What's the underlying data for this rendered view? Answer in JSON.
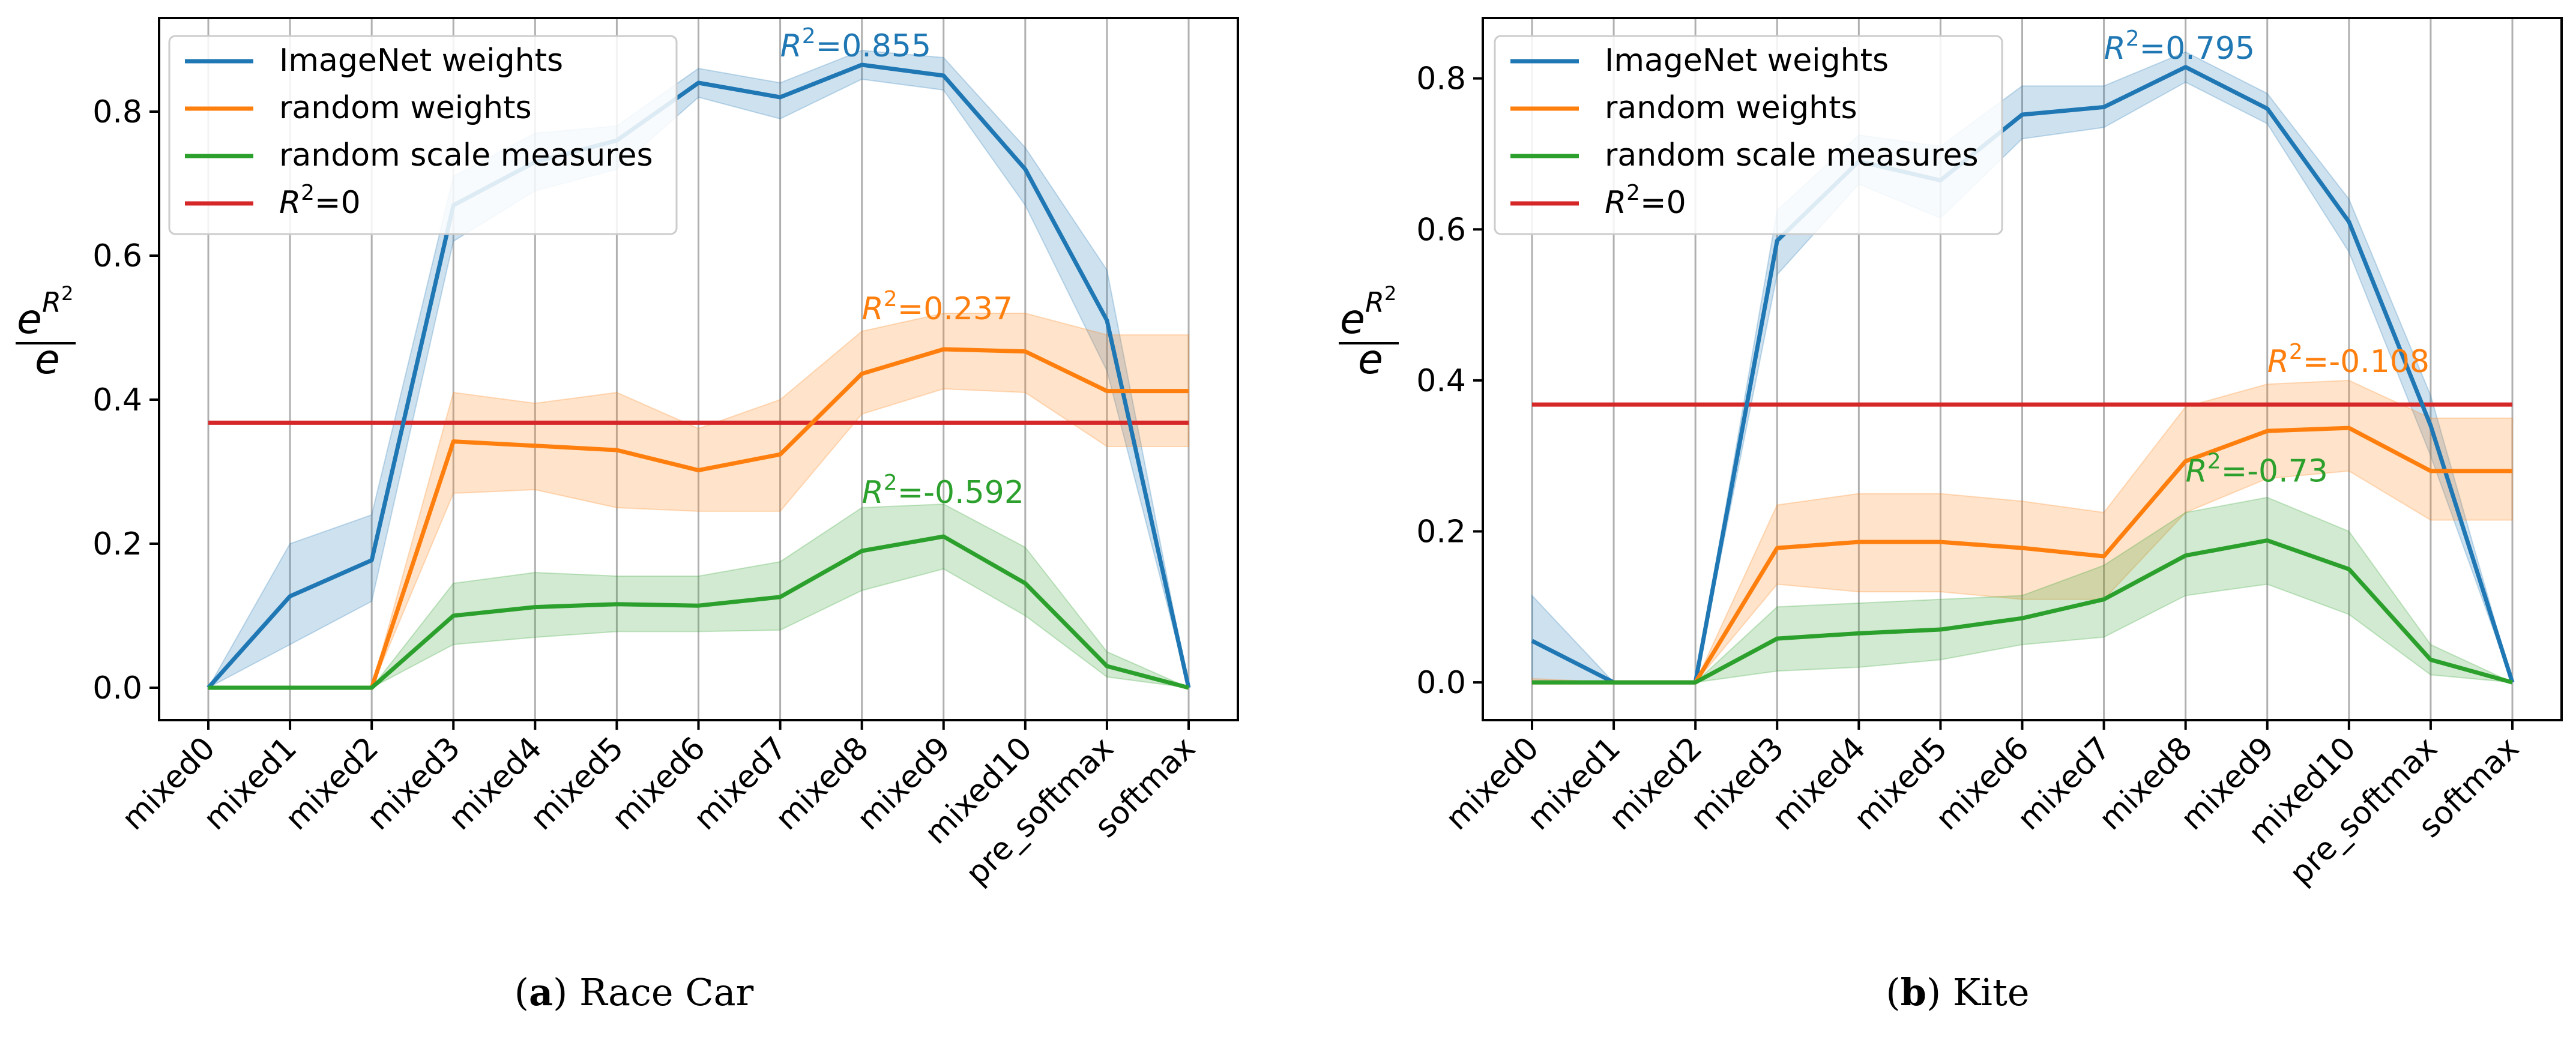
{
  "figure": {
    "panels": [
      {
        "caption_letter": "a",
        "caption_text": "Race Car",
        "r2_labels": {
          "imagenet": "0.855",
          "random_weights": "0.237",
          "random_scale": "-0.592"
        }
      },
      {
        "caption_letter": "b",
        "caption_text": "Kite",
        "r2_labels": {
          "imagenet": "0.795",
          "random_weights": "-0.108",
          "random_scale": "-0.73"
        }
      }
    ]
  },
  "colors": {
    "imagenet": "#1f77b4",
    "random_weights": "#ff7f0e",
    "random_scale": "#2ca02c",
    "baseline": "#d62728",
    "grid": "#b0b0b0"
  },
  "chart_data": [
    {
      "type": "line",
      "title": "",
      "xlabel": "",
      "ylabel": "e^{R^2}/e",
      "categories": [
        "mixed0",
        "mixed1",
        "mixed2",
        "mixed3",
        "mixed4",
        "mixed5",
        "mixed6",
        "mixed7",
        "mixed8",
        "mixed9",
        "mixed10",
        "pre_softmax",
        "softmax"
      ],
      "ylim": [
        -0.045,
        0.93
      ],
      "yticks": [
        0.0,
        0.2,
        0.4,
        0.6,
        0.8
      ],
      "ytick_labels": [
        "0.0",
        "0.2",
        "0.4",
        "0.6",
        "0.8"
      ],
      "grid": "vertical",
      "legend": {
        "placement": "top-left",
        "entries": [
          {
            "key": "imagenet",
            "label": "ImageNet weights"
          },
          {
            "key": "random_weights",
            "label": "random weights"
          },
          {
            "key": "random_scale",
            "label": "random scale measures"
          },
          {
            "key": "baseline",
            "label": "=0"
          }
        ]
      },
      "baseline": 0.368,
      "series": [
        {
          "key": "imagenet",
          "name": "ImageNet weights",
          "values": [
            0.0,
            0.127,
            0.177,
            0.67,
            0.73,
            0.76,
            0.84,
            0.82,
            0.865,
            0.85,
            0.72,
            0.51,
            0.0
          ],
          "lower": [
            0.0,
            0.06,
            0.12,
            0.62,
            0.69,
            0.72,
            0.82,
            0.79,
            0.845,
            0.83,
            0.67,
            0.44,
            0.0
          ],
          "upper": [
            0.0,
            0.2,
            0.24,
            0.71,
            0.77,
            0.78,
            0.86,
            0.84,
            0.885,
            0.875,
            0.75,
            0.58,
            0.0
          ]
        },
        {
          "key": "random_weights",
          "name": "random weights",
          "values": [
            0.0,
            0.0,
            0.0,
            0.342,
            0.336,
            0.33,
            0.302,
            0.324,
            0.436,
            0.47,
            0.467,
            0.412,
            0.412
          ],
          "lower": [
            0.0,
            0.0,
            0.0,
            0.27,
            0.275,
            0.25,
            0.245,
            0.245,
            0.38,
            0.415,
            0.41,
            0.335,
            0.335
          ],
          "upper": [
            0.0,
            0.0,
            0.0,
            0.41,
            0.395,
            0.41,
            0.36,
            0.4,
            0.495,
            0.52,
            0.52,
            0.49,
            0.49
          ]
        },
        {
          "key": "random_scale",
          "name": "random scale measures",
          "values": [
            0.0,
            0.0,
            0.0,
            0.1,
            0.112,
            0.116,
            0.114,
            0.126,
            0.19,
            0.21,
            0.145,
            0.03,
            0.0
          ],
          "lower": [
            0.0,
            0.0,
            0.0,
            0.06,
            0.07,
            0.078,
            0.078,
            0.08,
            0.135,
            0.165,
            0.1,
            0.015,
            0.0
          ],
          "upper": [
            0.0,
            0.0,
            0.0,
            0.145,
            0.16,
            0.155,
            0.155,
            0.175,
            0.25,
            0.255,
            0.195,
            0.05,
            0.0
          ]
        }
      ],
      "annotations": [
        {
          "series": "imagenet",
          "x": "mixed7",
          "y": 0.865,
          "label_ref": "imagenet"
        },
        {
          "series": "random_weights",
          "x": "mixed8",
          "y": 0.5,
          "label_ref": "random_weights"
        },
        {
          "series": "random_scale",
          "x": "mixed8",
          "y": 0.245,
          "label_ref": "random_scale"
        }
      ]
    },
    {
      "type": "line",
      "title": "",
      "xlabel": "",
      "ylabel": "e^{R^2}/e",
      "categories": [
        "mixed0",
        "mixed1",
        "mixed2",
        "mixed3",
        "mixed4",
        "mixed5",
        "mixed6",
        "mixed7",
        "mixed8",
        "mixed9",
        "mixed10",
        "pre_softmax",
        "softmax"
      ],
      "ylim": [
        -0.05,
        0.88
      ],
      "yticks": [
        0.0,
        0.2,
        0.4,
        0.6,
        0.8
      ],
      "ytick_labels": [
        "0.0",
        "0.2",
        "0.4",
        "0.6",
        "0.8"
      ],
      "grid": "vertical",
      "legend": {
        "placement": "top-left",
        "entries": [
          {
            "key": "imagenet",
            "label": "ImageNet weights"
          },
          {
            "key": "random_weights",
            "label": "random weights"
          },
          {
            "key": "random_scale",
            "label": "random scale measures"
          },
          {
            "key": "baseline",
            "label": "=0"
          }
        ]
      },
      "baseline": 0.368,
      "series": [
        {
          "key": "imagenet",
          "name": "ImageNet weights",
          "values": [
            0.055,
            0.0,
            0.0,
            0.585,
            0.69,
            0.665,
            0.752,
            0.762,
            0.815,
            0.76,
            0.61,
            0.34,
            0.0
          ],
          "lower": [
            0.0,
            0.0,
            0.0,
            0.54,
            0.66,
            0.615,
            0.72,
            0.735,
            0.795,
            0.74,
            0.57,
            0.3,
            0.0
          ],
          "upper": [
            0.115,
            0.0,
            0.0,
            0.625,
            0.725,
            0.71,
            0.79,
            0.79,
            0.835,
            0.78,
            0.64,
            0.38,
            0.0
          ]
        },
        {
          "key": "random_weights",
          "name": "random weights",
          "values": [
            0.0,
            0.0,
            0.0,
            0.178,
            0.186,
            0.186,
            0.178,
            0.167,
            0.293,
            0.333,
            0.337,
            0.28,
            0.28
          ],
          "lower": [
            0.0,
            0.0,
            0.0,
            0.13,
            0.12,
            0.12,
            0.11,
            0.11,
            0.225,
            0.27,
            0.28,
            0.215,
            0.215
          ],
          "upper": [
            0.005,
            0.0,
            0.0,
            0.235,
            0.25,
            0.25,
            0.24,
            0.225,
            0.365,
            0.395,
            0.4,
            0.35,
            0.35
          ]
        },
        {
          "key": "random_scale",
          "name": "random scale measures",
          "values": [
            0.0,
            0.0,
            0.0,
            0.058,
            0.065,
            0.07,
            0.085,
            0.11,
            0.168,
            0.188,
            0.15,
            0.03,
            0.0
          ],
          "lower": [
            0.0,
            0.0,
            0.0,
            0.015,
            0.02,
            0.03,
            0.05,
            0.06,
            0.115,
            0.13,
            0.09,
            0.01,
            0.0
          ],
          "upper": [
            0.0,
            0.0,
            0.0,
            0.1,
            0.105,
            0.11,
            0.115,
            0.155,
            0.225,
            0.245,
            0.2,
            0.05,
            0.0
          ]
        }
      ],
      "annotations": [
        {
          "series": "imagenet",
          "x": "mixed7",
          "y": 0.815,
          "label_ref": "imagenet"
        },
        {
          "series": "random_weights",
          "x": "mixed9",
          "y": 0.4,
          "label_ref": "random_weights"
        },
        {
          "series": "random_scale",
          "x": "mixed8",
          "y": 0.255,
          "label_ref": "random_scale"
        }
      ]
    }
  ]
}
